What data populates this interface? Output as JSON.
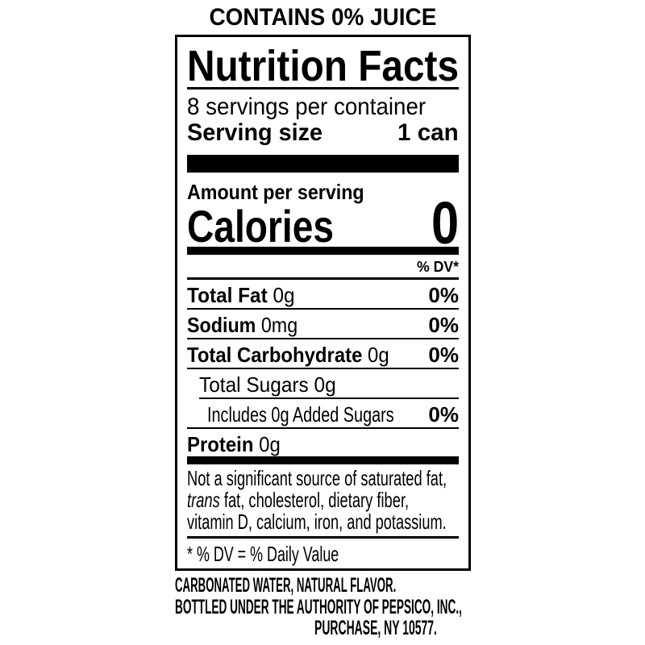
{
  "header": "CONTAINS 0% JUICE",
  "title": "Nutrition Facts",
  "servings_per_container": "8 servings per container",
  "serving_size_label": "Serving size",
  "serving_size_value": "1 can",
  "amount_per_serving": "Amount per serving",
  "calories_label": "Calories",
  "calories_value": "0",
  "dv_header": "% DV*",
  "nutrients": [
    {
      "name": "Total Fat",
      "amount": "0g",
      "dv": "0%"
    },
    {
      "name": "Sodium",
      "amount": "0mg",
      "dv": "0%"
    },
    {
      "name": "Total Carbohydrate",
      "amount": "0g",
      "dv": "0%"
    },
    {
      "name": "Total Sugars 0g",
      "amount": "",
      "dv": ""
    },
    {
      "name": "Includes 0g Added Sugars",
      "amount": "",
      "dv": "0%"
    },
    {
      "name": "Protein",
      "amount": "0g",
      "dv": ""
    }
  ],
  "footnote": {
    "line1": "Not a significant source of saturated fat,",
    "line2_italic": "trans",
    "line2_rest": " fat, cholesterol, dietary fiber,",
    "line3": "vitamin D, calcium, iron, and potassium."
  },
  "dv_note": "* % DV = % Daily Value",
  "ingredients": "CARBONATED WATER, NATURAL FLAVOR.",
  "bottler_line1": "BOTTLED UNDER THE AUTHORITY OF PEPSICO, INC.,",
  "bottler_line2": "PURCHASE, NY 10577."
}
